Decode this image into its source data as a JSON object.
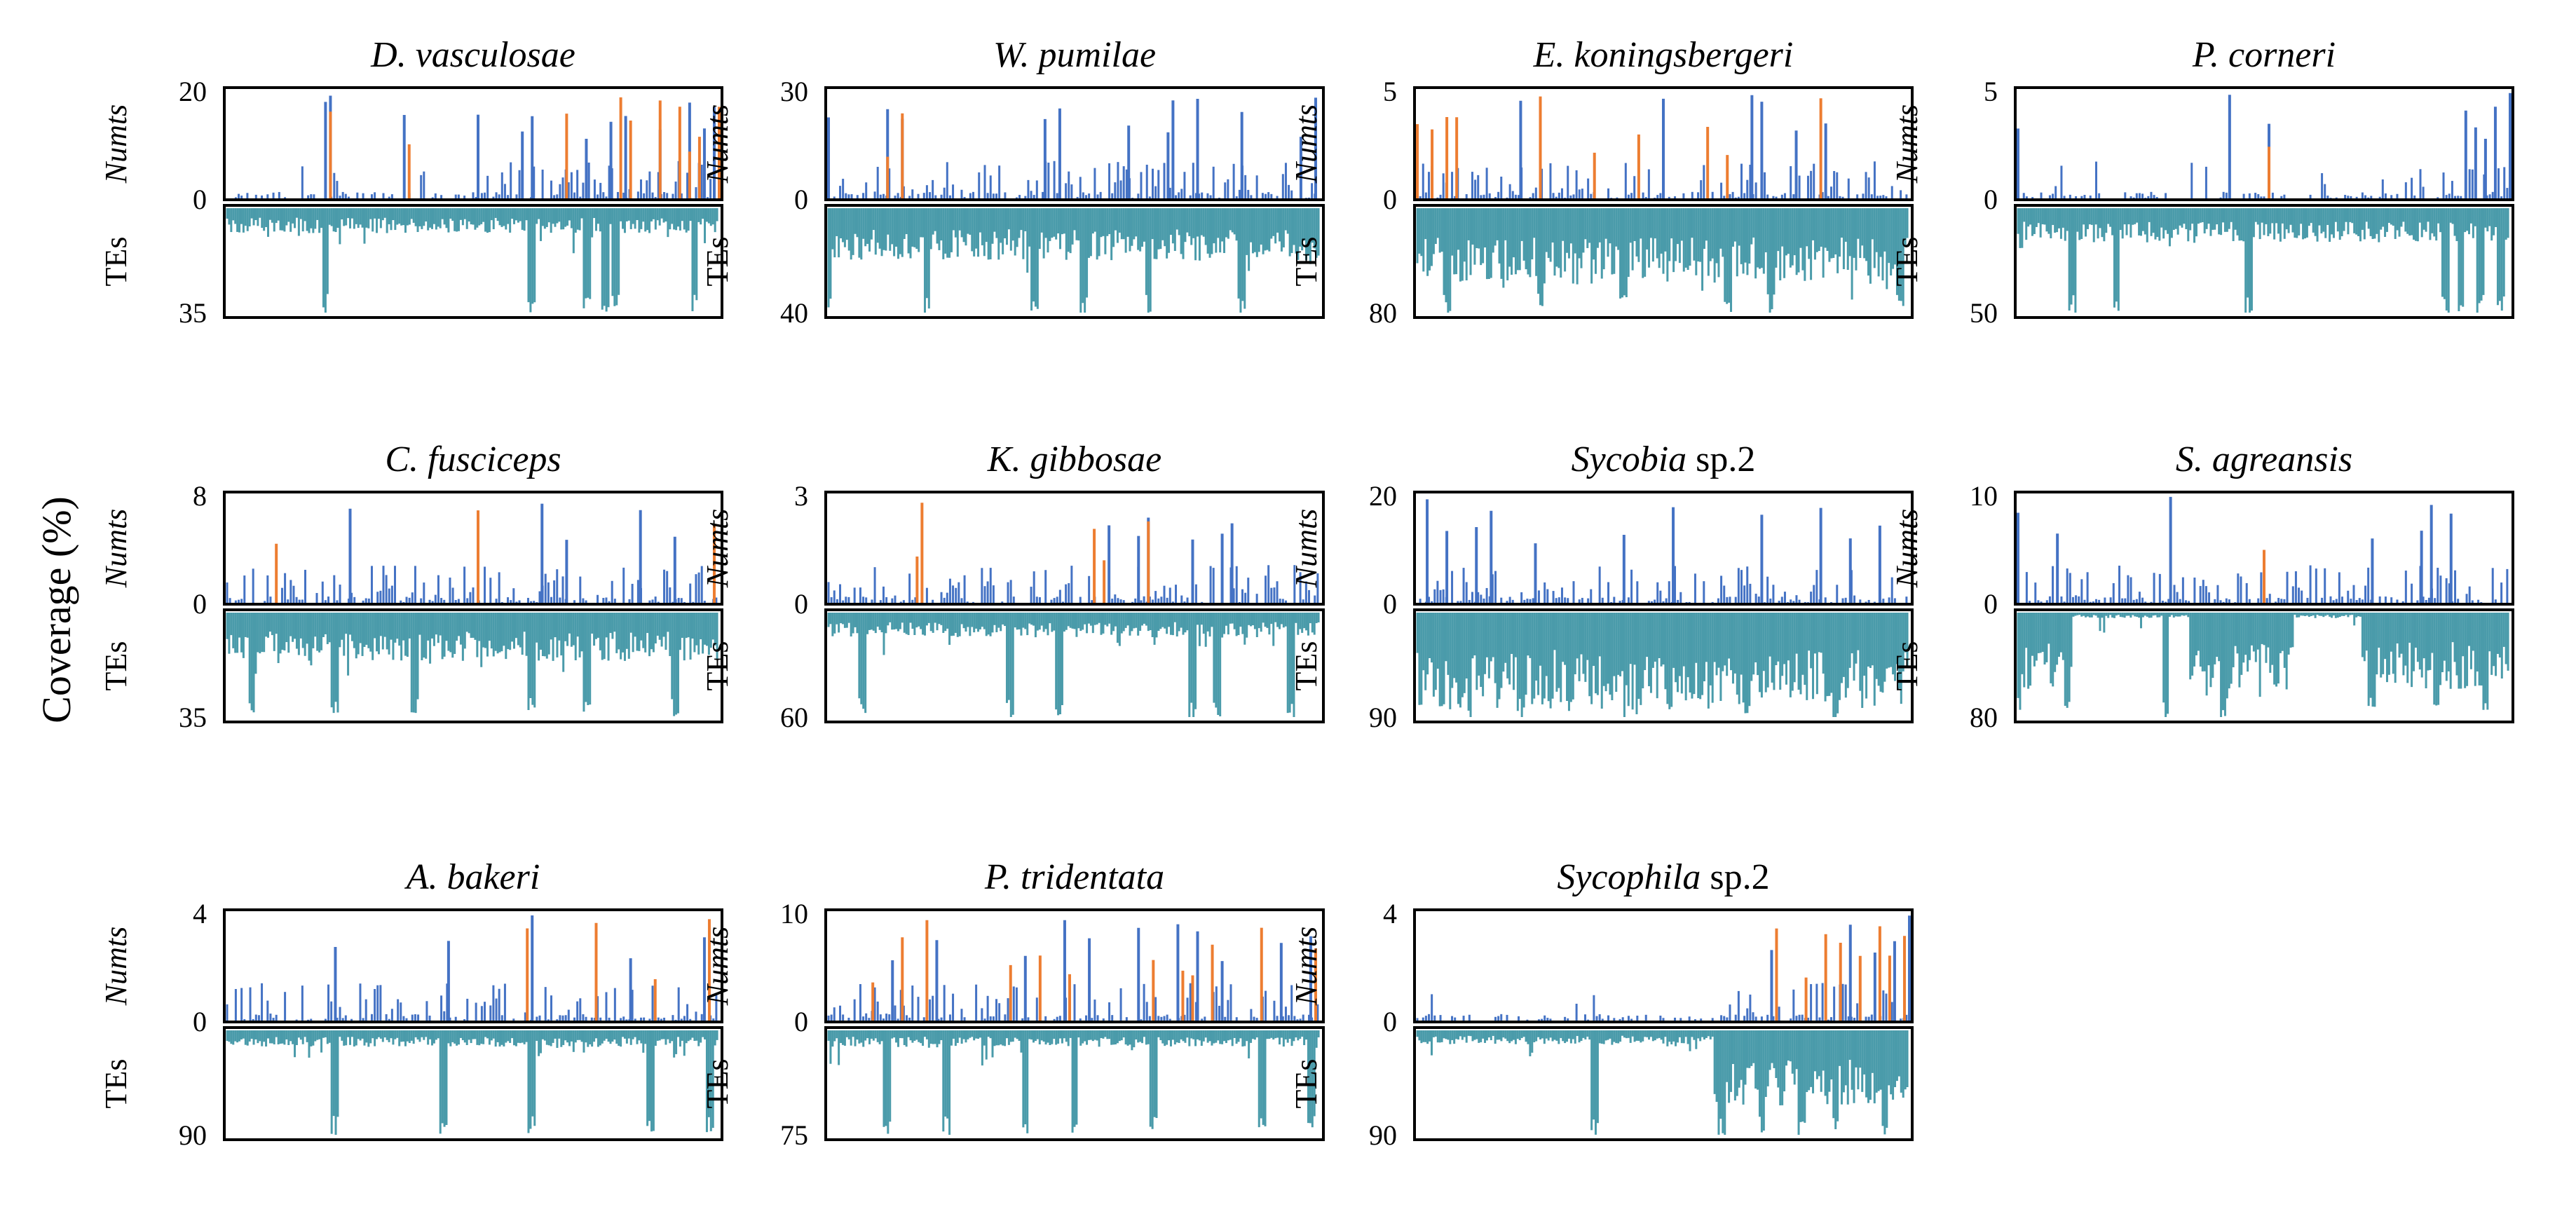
{
  "y_axis_label": "Coverage (%)",
  "track_labels": {
    "upper": "Numts",
    "lower": "TEs"
  },
  "colors": {
    "numt_primary": "#4472C4",
    "numt_secondary": "#ED7D31",
    "te": "#4A9BAA",
    "frame": "#000000"
  },
  "chart_data": [
    {
      "type": "bar",
      "title": {
        "italic": "D. vasculosae",
        "plain": ""
      },
      "numts_max": 20,
      "tes_max": 35,
      "numts_features": {
        "peaks_primary": [
          0.2,
          0.21,
          0.36,
          0.51,
          0.6,
          0.62,
          0.73,
          0.78,
          0.81,
          0.88,
          0.94,
          0.97,
          0.99
        ],
        "peaks_secondary": [
          0.21,
          0.37,
          0.69,
          0.8,
          0.82,
          0.88,
          0.92,
          0.94,
          0.96,
          1.0
        ],
        "dense_from": 0.55
      },
      "tes_features": {
        "baseline": 0.18,
        "deep": [
          0.2,
          0.62,
          0.73,
          0.77,
          0.79,
          0.95
        ]
      }
    },
    {
      "type": "bar",
      "title": {
        "italic": "W. pumilae",
        "plain": ""
      },
      "numts_max": 30,
      "tes_max": 40,
      "numts_features": {
        "peaks_primary": [
          0.0,
          0.12,
          0.15,
          0.44,
          0.47,
          0.61,
          0.69,
          0.7,
          0.75,
          0.84,
          0.96,
          0.99
        ],
        "peaks_secondary": [
          0.12,
          0.15
        ],
        "dense_from": 0.0
      },
      "tes_features": {
        "baseline": 0.38,
        "deep": [
          0.0,
          0.2,
          0.42,
          0.52,
          0.65,
          0.84
        ]
      }
    },
    {
      "type": "bar",
      "title": {
        "italic": "E. koningsbergeri",
        "plain": ""
      },
      "numts_max": 5,
      "tes_max": 80,
      "numts_features": {
        "peaks_primary": [
          0.21,
          0.5,
          0.68,
          0.7,
          0.77,
          0.83
        ],
        "peaks_secondary": [
          0.0,
          0.03,
          0.06,
          0.08,
          0.25,
          0.36,
          0.45,
          0.59,
          0.63,
          0.82
        ],
        "dense_from": 0.0
      },
      "tes_features": {
        "baseline": 0.55,
        "deep": [
          0.06,
          0.25,
          0.42,
          0.63,
          0.72,
          0.98
        ]
      }
    },
    {
      "type": "bar",
      "title": {
        "italic": "P. corneri",
        "plain": ""
      },
      "numts_max": 5,
      "tes_max": 50,
      "numts_features": {
        "peaks_primary": [
          0.0,
          0.43,
          0.51,
          0.91,
          0.93,
          0.95,
          0.97,
          1.0
        ],
        "peaks_secondary": [
          0.51
        ],
        "dense_from": 0.8
      },
      "tes_features": {
        "baseline": 0.25,
        "deep": [
          0.11,
          0.2,
          0.47,
          0.87,
          0.9,
          0.94,
          0.98
        ]
      }
    },
    {
      "type": "bar",
      "title": {
        "italic": "C. fusciceps",
        "plain": ""
      },
      "numts_max": 8,
      "tes_max": 35,
      "numts_features": {
        "peaks_primary": [
          0.25,
          0.64,
          0.69,
          0.84,
          0.91
        ],
        "peaks_secondary": [
          0.1,
          0.51,
          0.99
        ],
        "dense_from": 0.0
      },
      "tes_features": {
        "baseline": 0.35,
        "deep": [
          0.05,
          0.22,
          0.38,
          0.62,
          0.73,
          0.91
        ]
      }
    },
    {
      "type": "bar",
      "title": {
        "italic": "K. gibbosae",
        "plain": ""
      },
      "numts_max": 3,
      "tes_max": 60,
      "numts_features": {
        "peaks_primary": [
          0.57,
          0.63,
          0.65,
          0.74,
          0.8,
          0.82
        ],
        "peaks_secondary": [
          0.18,
          0.19,
          0.54,
          0.56,
          0.65
        ],
        "dense_from": 0.0
      },
      "tes_features": {
        "baseline": 0.18,
        "deep": [
          0.07,
          0.37,
          0.47,
          0.74,
          0.79,
          0.94
        ]
      }
    },
    {
      "type": "bar",
      "title": {
        "italic": "Sycobia",
        "plain": " sp.2"
      },
      "numts_max": 20,
      "tes_max": 90,
      "numts_features": {
        "peaks_primary": [
          0.02,
          0.06,
          0.12,
          0.15,
          0.24,
          0.42,
          0.52,
          0.7,
          0.82,
          0.88,
          0.94
        ],
        "peaks_secondary": [],
        "dense_from": 0.0
      },
      "tes_features": {
        "baseline": 0.7,
        "deep": [
          0.05,
          0.21,
          0.31,
          0.45,
          0.67,
          0.85
        ]
      }
    },
    {
      "type": "bar",
      "title": {
        "italic": "S. agreansis",
        "plain": ""
      },
      "numts_max": 10,
      "tes_max": 80,
      "numts_features": {
        "peaks_primary": [
          0.0,
          0.08,
          0.31,
          0.72,
          0.82,
          0.84,
          0.88
        ],
        "peaks_secondary": [
          0.5
        ],
        "dense_from": 0.0
      },
      "tes_features": {
        "baseline": 0.55,
        "deep": [
          0.0,
          0.1,
          0.3,
          0.42,
          0.72,
          0.85,
          0.95
        ],
        "gaps": [
          [
            0.11,
            0.35
          ],
          [
            0.56,
            0.7
          ]
        ]
      }
    },
    {
      "type": "bar",
      "title": {
        "italic": "A. bakeri",
        "plain": ""
      },
      "numts_max": 4,
      "tes_max": 90,
      "numts_features": {
        "peaks_primary": [
          0.22,
          0.45,
          0.62,
          0.82,
          0.97
        ],
        "peaks_secondary": [
          0.61,
          0.75,
          0.87,
          0.98
        ],
        "dense_from": 0.0
      },
      "tes_features": {
        "baseline": 0.12,
        "deep": [
          0.22,
          0.44,
          0.62,
          0.86,
          0.98
        ]
      }
    },
    {
      "type": "bar",
      "title": {
        "italic": "P. tridentata",
        "plain": ""
      },
      "numts_max": 10,
      "tes_max": 75,
      "numts_features": {
        "peaks_primary": [
          0.13,
          0.22,
          0.4,
          0.48,
          0.53,
          0.63,
          0.71,
          0.75,
          0.8,
          0.92,
          0.98
        ],
        "peaks_secondary": [
          0.09,
          0.15,
          0.2,
          0.37,
          0.43,
          0.49,
          0.66,
          0.72,
          0.74,
          0.78,
          0.88,
          0.99
        ],
        "dense_from": 0.0
      },
      "tes_features": {
        "baseline": 0.12,
        "deep": [
          0.12,
          0.24,
          0.4,
          0.5,
          0.66,
          0.88,
          0.98
        ]
      }
    },
    {
      "type": "bar",
      "title": {
        "italic": "Sycophila",
        "plain": " sp.2"
      },
      "numts_max": 4,
      "tes_max": 90,
      "numts_features": {
        "peaks_primary": [
          0.72,
          0.88,
          0.93,
          0.97,
          1.0
        ],
        "peaks_secondary": [
          0.73,
          0.79,
          0.83,
          0.86,
          0.9,
          0.94,
          0.96,
          0.99
        ],
        "dense_from": 0.65
      },
      "tes_features": {
        "baseline": 0.1,
        "deep": [
          0.36,
          0.62,
          0.7,
          0.78,
          0.85,
          0.95
        ],
        "rise_from": 0.6
      }
    }
  ]
}
